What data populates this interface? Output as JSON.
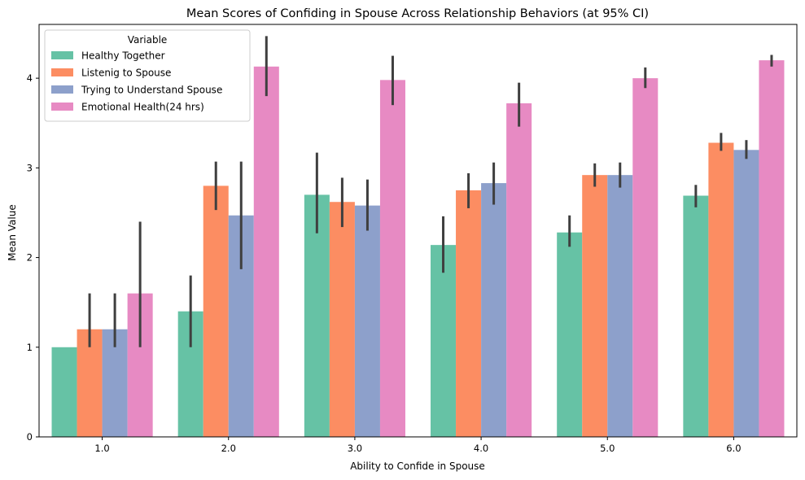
{
  "chart_data": {
    "type": "bar",
    "title": "Mean Scores of Confiding in Spouse Across Relationship Behaviors (at 95% CI)",
    "xlabel": "Ability to Confide in Spouse",
    "ylabel": "Mean Value",
    "categories": [
      "1.0",
      "2.0",
      "3.0",
      "4.0",
      "5.0",
      "6.0"
    ],
    "ylim": [
      0,
      4.6
    ],
    "yticks": [
      0,
      1,
      2,
      3,
      4
    ],
    "grid": false,
    "legend": {
      "title": "Variable",
      "placement": "top-left"
    },
    "series": [
      {
        "name": "Healthy Together",
        "color": "#66c2a5",
        "values": [
          1.0,
          1.4,
          2.7,
          2.14,
          2.28,
          2.69
        ],
        "ci": [
          [
            1.0,
            1.0
          ],
          [
            1.0,
            1.8
          ],
          [
            2.27,
            3.17
          ],
          [
            1.83,
            2.46
          ],
          [
            2.12,
            2.47
          ],
          [
            2.56,
            2.81
          ]
        ]
      },
      {
        "name": "Listenig to Spouse",
        "color": "#fc8d62",
        "values": [
          1.2,
          2.8,
          2.62,
          2.75,
          2.92,
          3.28
        ],
        "ci": [
          [
            1.0,
            1.6
          ],
          [
            2.53,
            3.07
          ],
          [
            2.34,
            2.89
          ],
          [
            2.55,
            2.94
          ],
          [
            2.79,
            3.05
          ],
          [
            3.19,
            3.39
          ]
        ]
      },
      {
        "name": "Trying to Understand Spouse",
        "color": "#8da0cb",
        "values": [
          1.2,
          2.47,
          2.58,
          2.83,
          2.92,
          3.2
        ],
        "ci": [
          [
            1.0,
            1.6
          ],
          [
            1.87,
            3.07
          ],
          [
            2.3,
            2.87
          ],
          [
            2.59,
            3.06
          ],
          [
            2.78,
            3.06
          ],
          [
            3.1,
            3.31
          ]
        ]
      },
      {
        "name": "Emotional Health(24 hrs)",
        "color": "#e78ac3",
        "values": [
          1.6,
          4.13,
          3.98,
          3.72,
          4.0,
          4.2
        ],
        "ci": [
          [
            1.0,
            2.4
          ],
          [
            3.8,
            4.47
          ],
          [
            3.7,
            4.25
          ],
          [
            3.46,
            3.95
          ],
          [
            3.89,
            4.12
          ],
          [
            4.13,
            4.26
          ]
        ]
      }
    ],
    "error_bar_color": "#3f3f3f"
  }
}
